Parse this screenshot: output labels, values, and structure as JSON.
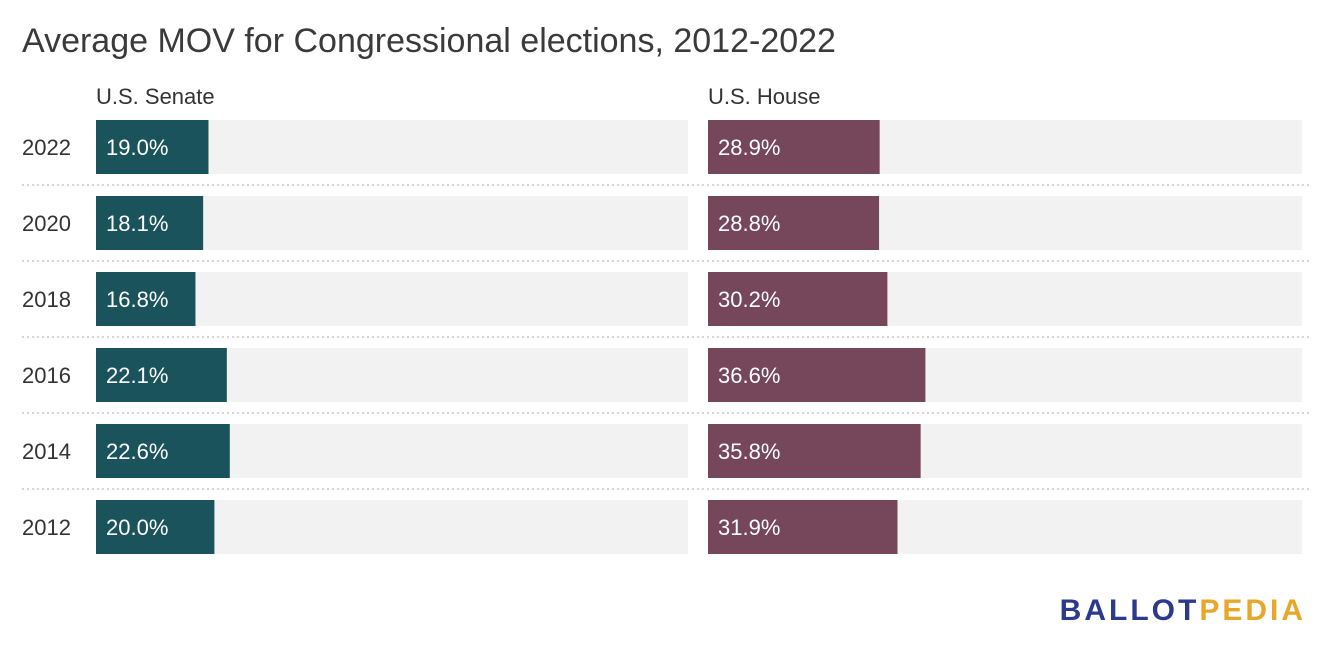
{
  "chart_data": {
    "type": "bar",
    "title": "Average MOV for Congressional elections, 2012-2022",
    "categories": [
      "2022",
      "2020",
      "2018",
      "2016",
      "2014",
      "2012"
    ],
    "series": [
      {
        "name": "U.S. Senate",
        "values": [
          19.0,
          18.1,
          16.8,
          22.1,
          22.6,
          20.0
        ],
        "labels": [
          "19.0%",
          "18.1%",
          "16.8%",
          "22.1%",
          "22.6%",
          "20.0%"
        ],
        "color": "#1a535c"
      },
      {
        "name": "U.S. House",
        "values": [
          28.9,
          28.8,
          30.2,
          36.6,
          35.8,
          31.9
        ],
        "labels": [
          "28.9%",
          "28.8%",
          "30.2%",
          "36.6%",
          "35.8%",
          "31.9%"
        ],
        "color": "#76475a"
      }
    ],
    "xlim": [
      0,
      100
    ],
    "orientation": "horizontal",
    "background_color": "#f2f2f2"
  },
  "logo": {
    "part1": "BALLOT",
    "part2": "PEDIA",
    "color1": "#2b3a8f",
    "color2": "#e8a72b"
  }
}
